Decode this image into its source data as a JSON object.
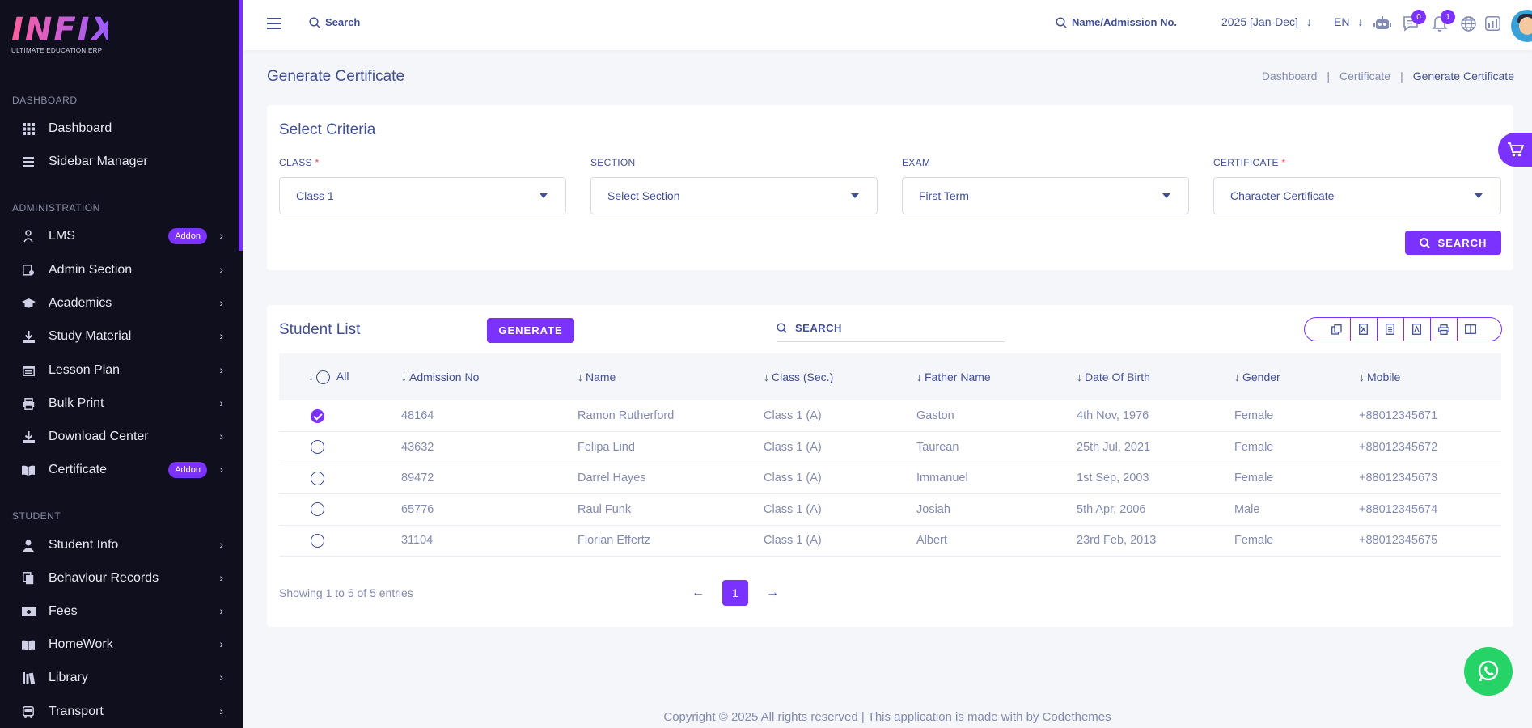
{
  "logo": {
    "brand": "INFIX",
    "tagline": "ULTIMATE EDUCATION ERP"
  },
  "sidebar": {
    "sections": [
      {
        "title": "DASHBOARD",
        "items": [
          {
            "label": "Dashboard",
            "icon": "grid-icon"
          },
          {
            "label": "Sidebar Manager",
            "icon": "list-icon"
          }
        ]
      },
      {
        "title": "ADMINISTRATION",
        "items": [
          {
            "label": "LMS",
            "icon": "lms-icon",
            "badge": "Addon"
          },
          {
            "label": "Admin Section",
            "icon": "admin-icon"
          },
          {
            "label": "Academics",
            "icon": "graduation-cap-icon"
          },
          {
            "label": "Study Material",
            "icon": "download-icon"
          },
          {
            "label": "Lesson Plan",
            "icon": "calendar-icon"
          },
          {
            "label": "Bulk Print",
            "icon": "print-icon"
          },
          {
            "label": "Download Center",
            "icon": "download-icon"
          },
          {
            "label": "Certificate",
            "icon": "book-icon",
            "badge": "Addon"
          }
        ]
      },
      {
        "title": "STUDENT",
        "items": [
          {
            "label": "Student Info",
            "icon": "user-icon"
          },
          {
            "label": "Behaviour Records",
            "icon": "records-icon"
          },
          {
            "label": "Fees",
            "icon": "money-icon"
          },
          {
            "label": "HomeWork",
            "icon": "book-icon"
          },
          {
            "label": "Library",
            "icon": "library-icon"
          },
          {
            "label": "Transport",
            "icon": "bus-icon"
          }
        ]
      }
    ]
  },
  "header": {
    "search_label": "Search",
    "student_search_label": "Name/Admission No.",
    "session": "2025 [Jan-Dec]",
    "language": "EN",
    "messages_count": "0",
    "notifications_count": "1"
  },
  "page": {
    "title": "Generate Certificate",
    "breadcrumb": [
      "Dashboard",
      "Certificate",
      "Generate Certificate"
    ]
  },
  "criteria": {
    "title": "Select Criteria",
    "fields": [
      {
        "label": "CLASS",
        "required": true,
        "value": "Class 1"
      },
      {
        "label": "SECTION",
        "required": false,
        "value": "Select Section"
      },
      {
        "label": "EXAM",
        "required": false,
        "value": "First Term"
      },
      {
        "label": "CERTIFICATE",
        "required": true,
        "value": "Character Certificate"
      }
    ],
    "search_button": "SEARCH"
  },
  "student_list": {
    "title": "Student List",
    "generate_button": "GENERATE",
    "search_placeholder": "SEARCH",
    "columns": [
      "All",
      "Admission No",
      "Name",
      "Class (Sec.)",
      "Father Name",
      "Date Of Birth",
      "Gender",
      "Mobile"
    ],
    "rows": [
      {
        "checked": true,
        "admission": "48164",
        "name": "Ramon Rutherford",
        "class": "Class 1 (A)",
        "father": "Gaston",
        "dob": "4th Nov, 1976",
        "gender": "Female",
        "mobile": "+88012345671"
      },
      {
        "checked": false,
        "admission": "43632",
        "name": "Felipa Lind",
        "class": "Class 1 (A)",
        "father": "Taurean",
        "dob": "25th Jul, 2021",
        "gender": "Female",
        "mobile": "+88012345672"
      },
      {
        "checked": false,
        "admission": "89472",
        "name": "Darrel Hayes",
        "class": "Class 1 (A)",
        "father": "Immanuel",
        "dob": "1st Sep, 2003",
        "gender": "Female",
        "mobile": "+88012345673"
      },
      {
        "checked": false,
        "admission": "65776",
        "name": "Raul Funk",
        "class": "Class 1 (A)",
        "father": "Josiah",
        "dob": "5th Apr, 2006",
        "gender": "Male",
        "mobile": "+88012345674"
      },
      {
        "checked": false,
        "admission": "31104",
        "name": "Florian Effertz",
        "class": "Class 1 (A)",
        "father": "Albert",
        "dob": "23rd Feb, 2013",
        "gender": "Female",
        "mobile": "+88012345675"
      }
    ],
    "showing": "Showing 1 to 5 of 5 entries",
    "current_page": "1"
  },
  "footer": "Copyright © 2025 All rights reserved | This application is made with by Codethemes",
  "colors": {
    "accent": "#7c32ff",
    "text": "#415094",
    "muted": "#828bb2",
    "sidebar": "#0f0f1e"
  }
}
